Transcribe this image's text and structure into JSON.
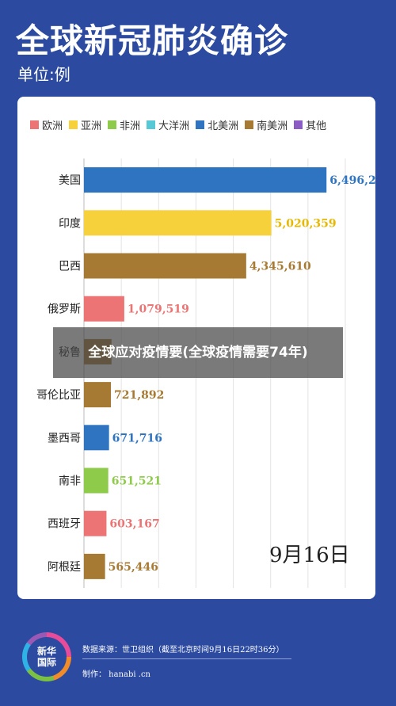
{
  "header": {
    "title": "全球新冠肺炎确诊",
    "unit": "单位:例"
  },
  "legend": [
    {
      "label": "欧洲",
      "color": "#ec7474"
    },
    {
      "label": "亚洲",
      "color": "#f7d13b"
    },
    {
      "label": "非洲",
      "color": "#8fcb4a"
    },
    {
      "label": "大洋洲",
      "color": "#57c8d6"
    },
    {
      "label": "北美洲",
      "color": "#2e74c0"
    },
    {
      "label": "南美洲",
      "color": "#a77a33"
    },
    {
      "label": "其他",
      "color": "#8a5cc4"
    }
  ],
  "chart_data": {
    "type": "bar",
    "orientation": "horizontal",
    "title": "全球新冠肺炎确诊",
    "unit": "单位:例",
    "categories": [
      "美国",
      "印度",
      "巴西",
      "俄罗斯",
      "秘鲁",
      "哥伦比亚",
      "墨西哥",
      "南非",
      "西班牙",
      "阿根廷"
    ],
    "values": [
      6496246,
      5020359,
      4345610,
      1079519,
      738020,
      721892,
      671716,
      651521,
      603167,
      565446
    ],
    "value_labels": [
      "6,496,246",
      "5,020,359",
      "4,345,610",
      "1,079,519",
      "",
      "721,892",
      "671,716",
      "651,521",
      "603,167",
      "565,446"
    ],
    "regions": [
      "北美洲",
      "亚洲",
      "南美洲",
      "欧洲",
      "南美洲",
      "南美洲",
      "北美洲",
      "非洲",
      "欧洲",
      "南美洲"
    ],
    "category_colors": [
      "#2e74c0",
      "#f7d13b",
      "#a77a33",
      "#ec7474",
      "#a77a33",
      "#a77a33",
      "#2e74c0",
      "#8fcb4a",
      "#ec7474",
      "#a77a33"
    ],
    "label_colors": [
      "#2e74c0",
      "#e6b800",
      "#a77a33",
      "#ec7474",
      "#a77a33",
      "#a77a33",
      "#2e74c0",
      "#8fcb4a",
      "#ec7474",
      "#a77a33"
    ],
    "xlim": [
      0,
      7000000
    ],
    "grid": true,
    "legend_position": "top"
  },
  "date_stamp": "9月16日",
  "overlay_caption": "全球应对疫情要(全球疫情需要74年)",
  "footer": {
    "logo_text": "新华\n国际",
    "source": "数据来源：世卫组织（截至北京时间9月16日22时36分）",
    "maker": "制作：  hanabi  .cn"
  }
}
